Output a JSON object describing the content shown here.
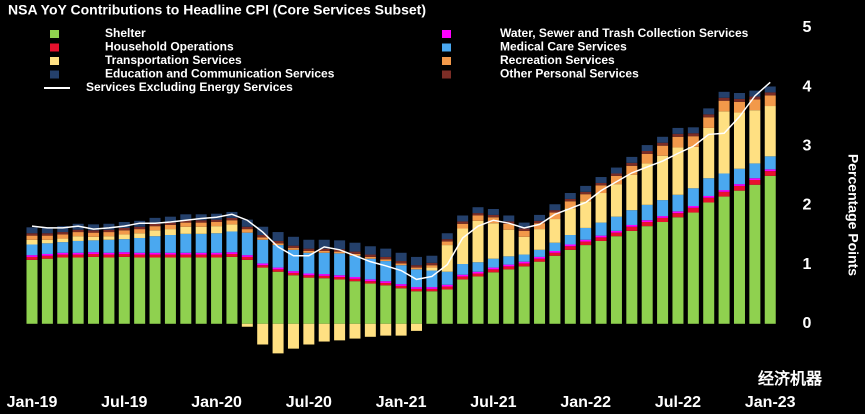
{
  "chart_data": {
    "type": "stacked-bar",
    "title": "NSA YoY Contributions to Headline CPI (Core Services Subset)",
    "y_label": "Percentage Points",
    "watermark": "经济机器",
    "categories": [
      "Jan-19",
      null,
      null,
      null,
      null,
      null,
      "Jul-19",
      null,
      null,
      null,
      null,
      null,
      "Jan-20",
      null,
      null,
      null,
      null,
      null,
      "Jul-20",
      null,
      null,
      null,
      null,
      null,
      "Jan-21",
      null,
      null,
      null,
      null,
      null,
      "Jul-21",
      null,
      null,
      null,
      null,
      null,
      "Jan-22",
      null,
      null,
      null,
      null,
      null,
      "Jul-22",
      null,
      null,
      null,
      null,
      null,
      "Jan-23"
    ],
    "ylim": [
      -0.95,
      5.1
    ],
    "yticks": [
      0,
      1,
      2,
      3,
      4,
      5
    ],
    "series": [
      {
        "name": "Shelter",
        "color": "#8fd14f",
        "values": [
          1.08,
          1.1,
          1.12,
          1.12,
          1.13,
          1.12,
          1.13,
          1.12,
          1.12,
          1.12,
          1.12,
          1.12,
          1.12,
          1.13,
          1.08,
          0.95,
          0.88,
          0.82,
          0.78,
          0.77,
          0.75,
          0.72,
          0.68,
          0.65,
          0.6,
          0.55,
          0.55,
          0.58,
          0.75,
          0.8,
          0.87,
          0.92,
          0.97,
          1.05,
          1.15,
          1.25,
          1.33,
          1.4,
          1.48,
          1.57,
          1.65,
          1.72,
          1.8,
          1.88,
          2.05,
          2.15,
          2.25,
          2.35,
          2.5
        ]
      },
      {
        "name": "Household Operations",
        "color": "#e8112d",
        "values": [
          0.05,
          0.05,
          0.05,
          0.05,
          0.05,
          0.05,
          0.05,
          0.05,
          0.05,
          0.05,
          0.05,
          0.05,
          0.05,
          0.05,
          0.05,
          0.04,
          0.04,
          0.04,
          0.04,
          0.04,
          0.04,
          0.04,
          0.04,
          0.04,
          0.04,
          0.04,
          0.04,
          0.05,
          0.05,
          0.05,
          0.05,
          0.05,
          0.05,
          0.05,
          0.05,
          0.06,
          0.06,
          0.06,
          0.06,
          0.07,
          0.07,
          0.07,
          0.07,
          0.08,
          0.08,
          0.08,
          0.08,
          0.08,
          0.08
        ]
      },
      {
        "name": "Transportation Services",
        "color": "#ffe082",
        "values": [
          0.08,
          0.06,
          0.06,
          0.08,
          0.06,
          0.06,
          0.08,
          0.08,
          0.1,
          0.1,
          0.12,
          0.12,
          0.12,
          0.12,
          -0.05,
          -0.35,
          -0.5,
          -0.42,
          -0.35,
          -0.3,
          -0.28,
          -0.25,
          -0.22,
          -0.2,
          -0.2,
          -0.12,
          0.05,
          0.45,
          0.6,
          0.7,
          0.6,
          0.45,
          0.3,
          0.35,
          0.4,
          0.45,
          0.45,
          0.5,
          0.55,
          0.6,
          0.7,
          0.75,
          0.8,
          0.7,
          0.85,
          1.05,
          0.95,
          0.9,
          0.85
        ]
      },
      {
        "name": "Education and Communication Services",
        "color": "#24406b",
        "values": [
          0.1,
          0.1,
          0.1,
          0.1,
          0.1,
          0.1,
          0.1,
          0.1,
          0.1,
          0.1,
          0.1,
          0.1,
          0.1,
          0.1,
          0.12,
          0.14,
          0.15,
          0.15,
          0.15,
          0.15,
          0.15,
          0.15,
          0.14,
          0.14,
          0.14,
          0.14,
          0.12,
          0.1,
          0.1,
          0.1,
          0.1,
          0.1,
          0.1,
          0.1,
          0.1,
          0.1,
          0.1,
          0.1,
          0.1,
          0.1,
          0.1,
          0.1,
          0.1,
          0.1,
          0.1,
          0.1,
          0.1,
          0.1,
          0.1
        ]
      },
      {
        "name": "Water, Sewer and Trash Collection Services",
        "color": "#ff00ff",
        "values": [
          0.03,
          0.03,
          0.03,
          0.03,
          0.03,
          0.03,
          0.03,
          0.03,
          0.03,
          0.03,
          0.03,
          0.03,
          0.03,
          0.03,
          0.03,
          0.03,
          0.03,
          0.03,
          0.03,
          0.03,
          0.03,
          0.03,
          0.03,
          0.03,
          0.03,
          0.03,
          0.03,
          0.03,
          0.03,
          0.03,
          0.03,
          0.03,
          0.03,
          0.03,
          0.03,
          0.03,
          0.03,
          0.03,
          0.03,
          0.03,
          0.03,
          0.03,
          0.03,
          0.03,
          0.03,
          0.03,
          0.03,
          0.03,
          0.03
        ]
      },
      {
        "name": "Medical Care Services",
        "color": "#4aa8f0",
        "values": [
          0.18,
          0.18,
          0.18,
          0.2,
          0.2,
          0.22,
          0.22,
          0.25,
          0.28,
          0.3,
          0.32,
          0.32,
          0.33,
          0.35,
          0.38,
          0.4,
          0.38,
          0.36,
          0.35,
          0.36,
          0.37,
          0.36,
          0.35,
          0.34,
          0.32,
          0.3,
          0.28,
          0.22,
          0.18,
          0.16,
          0.15,
          0.14,
          0.12,
          0.12,
          0.14,
          0.16,
          0.2,
          0.22,
          0.24,
          0.25,
          0.26,
          0.27,
          0.28,
          0.3,
          0.3,
          0.28,
          0.26,
          0.25,
          0.22
        ]
      },
      {
        "name": "Recreation Services",
        "color": "#f2994a",
        "values": [
          0.07,
          0.07,
          0.07,
          0.07,
          0.07,
          0.07,
          0.07,
          0.07,
          0.07,
          0.07,
          0.07,
          0.07,
          0.07,
          0.07,
          0.06,
          0.04,
          0.03,
          0.03,
          0.03,
          0.03,
          0.03,
          0.03,
          0.03,
          0.03,
          0.03,
          0.03,
          0.04,
          0.06,
          0.08,
          0.09,
          0.1,
          0.1,
          0.1,
          0.1,
          0.11,
          0.12,
          0.12,
          0.13,
          0.14,
          0.15,
          0.16,
          0.17,
          0.18,
          0.18,
          0.18,
          0.18,
          0.18,
          0.18,
          0.18
        ]
      },
      {
        "name": "Other Personal Services",
        "color": "#7b2d26",
        "values": [
          0.04,
          0.04,
          0.04,
          0.04,
          0.04,
          0.04,
          0.04,
          0.04,
          0.04,
          0.04,
          0.04,
          0.04,
          0.04,
          0.04,
          0.04,
          0.04,
          0.04,
          0.04,
          0.04,
          0.04,
          0.04,
          0.04,
          0.04,
          0.04,
          0.04,
          0.04,
          0.04,
          0.04,
          0.04,
          0.04,
          0.04,
          0.04,
          0.04,
          0.04,
          0.04,
          0.04,
          0.04,
          0.04,
          0.04,
          0.05,
          0.05,
          0.05,
          0.05,
          0.05,
          0.05,
          0.05,
          0.05,
          0.05,
          0.05
        ]
      }
    ],
    "line": {
      "name": "Services Excluding Energy Services",
      "color": "#ffffff",
      "values": [
        1.65,
        1.62,
        1.62,
        1.65,
        1.6,
        1.62,
        1.65,
        1.7,
        1.7,
        1.72,
        1.75,
        1.78,
        1.8,
        1.85,
        1.75,
        1.55,
        1.3,
        1.15,
        1.15,
        1.3,
        1.25,
        1.15,
        1.05,
        0.98,
        0.9,
        0.75,
        0.8,
        1.0,
        1.45,
        1.65,
        1.75,
        1.7,
        1.62,
        1.68,
        1.85,
        1.95,
        2.05,
        2.25,
        2.4,
        2.55,
        2.65,
        2.75,
        2.88,
        3.0,
        3.2,
        3.22,
        3.5,
        3.85,
        4.08
      ]
    }
  }
}
